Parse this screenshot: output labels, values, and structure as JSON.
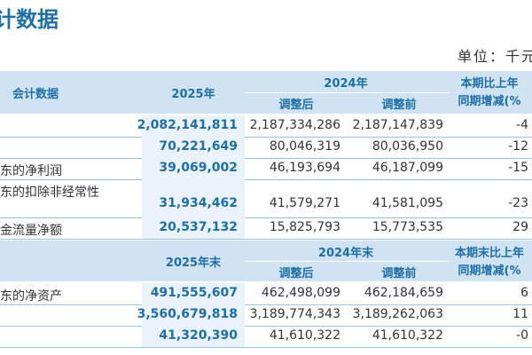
{
  "header": {
    "title": "计数据",
    "unit": "单位：千元"
  },
  "table": {
    "header1": {
      "label": "会计数据",
      "current": "2025年",
      "prior": "2024年",
      "after": "调整后",
      "before": "调整前",
      "change": [
        "本期比上年",
        "同期增减(%"
      ]
    },
    "rows1": [
      {
        "current": "2,082,141,811",
        "after": "2,187,334,286",
        "before": "2,187,147,839",
        "change": "-4"
      },
      {
        "current": "70,221,649",
        "after": "80,046,319",
        "before": "80,036,950",
        "change": "-12"
      },
      {
        "label": "东的净利润",
        "current": "39,069,002",
        "after": "46,193,694",
        "before": "46,187,099",
        "change": "-15"
      },
      {
        "label": "东的扣除非经常性",
        "current": "31,934,462",
        "after": "41,579,271",
        "before": "41,581,095",
        "change": "-23"
      },
      {
        "label": "金流量净额",
        "current": "20,537,132",
        "after": "15,825,793",
        "before": "15,773,535",
        "change": "29"
      }
    ],
    "header2": {
      "current": "2025年末",
      "prior": "2024年末",
      "after": "调整后",
      "before": "调整前",
      "change": [
        "本期末比上年",
        "同期增减(%"
      ]
    },
    "rows2": [
      {
        "label": "东的净资产",
        "current": "491,555,607",
        "after": "462,498,099",
        "before": "462,184,659",
        "change": "6"
      },
      {
        "current": "3,560,679,818",
        "after": "3,189,774,343",
        "before": "3,189,262,063",
        "change": "11"
      },
      {
        "current": "41,320,390",
        "after": "41,610,322",
        "before": "41,610,322",
        "change": "-0"
      }
    ]
  }
}
